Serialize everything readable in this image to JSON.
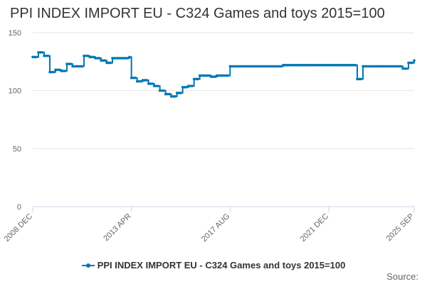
{
  "title": "PPI INDEX IMPORT EU - C324 Games and toys 2015=100",
  "source_label": "Source:",
  "colors": {
    "series": "#0077b3",
    "grid": "#e6e6e6",
    "axis": "#ccd6eb",
    "text": "#666666"
  },
  "chart_data": {
    "type": "line",
    "title": "PPI INDEX IMPORT EU - C324 Games and toys 2015=100",
    "xlabel": "",
    "ylabel": "",
    "ylim": [
      0,
      150
    ],
    "y_ticks": [
      0,
      50,
      100,
      150
    ],
    "x_ticks": [
      "2008 DEC",
      "2013 APR",
      "2017 AUG",
      "2021 DEC",
      "2025 SEP"
    ],
    "grid": true,
    "legend_position": "bottom",
    "series": [
      {
        "name": "PPI INDEX IMPORT EU - C324 Games and toys 2015=100",
        "x": [
          "2008-12",
          "2009-03",
          "2009-06",
          "2009-09",
          "2009-12",
          "2010-03",
          "2010-06",
          "2010-09",
          "2010-12",
          "2011-03",
          "2011-06",
          "2011-09",
          "2011-12",
          "2012-03",
          "2012-06",
          "2012-09",
          "2012-12",
          "2013-03",
          "2013-04",
          "2013-07",
          "2013-10",
          "2014-01",
          "2014-04",
          "2014-07",
          "2014-10",
          "2015-01",
          "2015-04",
          "2015-07",
          "2015-10",
          "2016-01",
          "2016-04",
          "2016-07",
          "2016-10",
          "2017-01",
          "2017-04",
          "2017-08",
          "2017-11",
          "2018-02",
          "2018-05",
          "2018-08",
          "2018-11",
          "2019-03",
          "2019-06",
          "2019-09",
          "2019-12",
          "2020-06",
          "2020-12",
          "2021-06",
          "2021-12",
          "2022-06",
          "2022-12",
          "2023-03",
          "2023-06",
          "2023-09",
          "2023-12",
          "2024-06",
          "2024-12",
          "2025-03",
          "2025-06",
          "2025-09"
        ],
        "values": [
          129,
          133,
          130,
          116,
          118,
          117,
          123,
          121,
          121,
          130,
          129,
          128,
          126,
          124,
          128,
          128,
          128,
          129,
          111,
          108,
          109,
          106,
          104,
          100,
          97,
          95,
          98,
          103,
          104,
          110,
          113,
          113,
          112,
          113,
          113,
          121,
          121,
          121,
          121,
          121,
          121,
          121,
          121,
          121,
          122,
          122,
          122,
          122,
          122,
          122,
          122,
          110,
          121,
          121,
          121,
          121,
          121,
          119,
          124,
          126
        ]
      }
    ]
  }
}
